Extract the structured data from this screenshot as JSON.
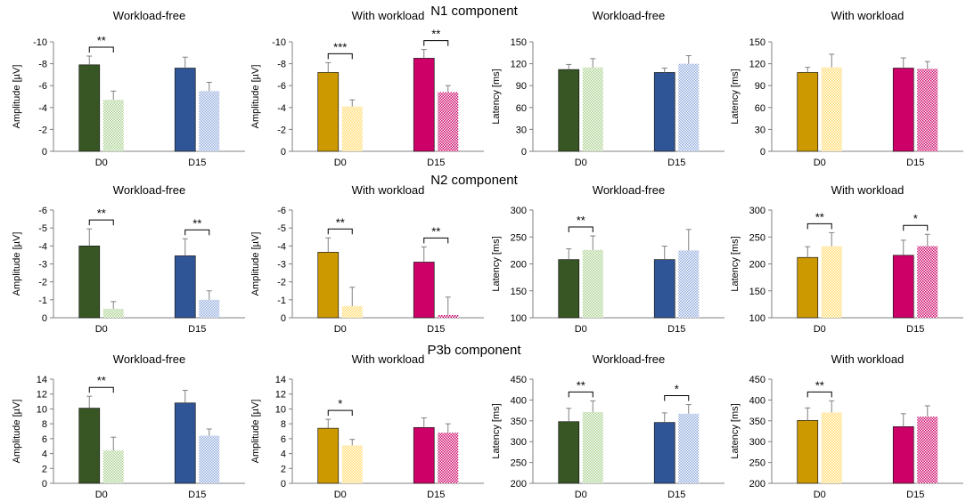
{
  "figure": {
    "sections": [
      {
        "name": "N1",
        "label": "N1 component"
      },
      {
        "name": "N2",
        "label": "N2 component"
      },
      {
        "name": "P3b",
        "label": "P3b component"
      }
    ]
  },
  "colors": {
    "workload_free": {
      "solid": "#375623",
      "pattern": "#a9d08e"
    },
    "with_workload_d0": {
      "solid": "#cc9900",
      "pattern": "#ffd966"
    },
    "workload_free_d15": {
      "solid": "#2f5597",
      "pattern": "#8faadc"
    },
    "with_workload_d15": {
      "solid": "#cc0066",
      "pattern": "#cc0066"
    }
  },
  "chart_data": [
    {
      "id": "n1-amp-wf",
      "type": "bar",
      "title": "Workload-free",
      "ylabel": "Amplitude [µV]",
      "ylim": [
        0,
        -10
      ],
      "yticks": [
        "-10",
        "-8",
        "-6",
        "-4",
        "-2",
        "0"
      ],
      "categories": [
        "D0",
        "D15"
      ],
      "series": [
        {
          "name": "solid",
          "values": [
            -7.9,
            -7.6
          ],
          "errors": [
            0.8,
            1.0
          ]
        },
        {
          "name": "pattern",
          "values": [
            -4.7,
            -5.5
          ],
          "errors": [
            0.8,
            0.8
          ]
        }
      ],
      "colors": [
        "#375623",
        "#2f5597"
      ],
      "significance": [
        {
          "category": "D0",
          "label": "**"
        }
      ]
    },
    {
      "id": "n1-amp-ww",
      "type": "bar",
      "title": "With workload",
      "ylabel": "Amplitude [µV]",
      "ylim": [
        0,
        -10
      ],
      "yticks": [
        "-10",
        "-8",
        "-6",
        "-4",
        "-2",
        "0"
      ],
      "categories": [
        "D0",
        "D15"
      ],
      "series": [
        {
          "name": "solid",
          "values": [
            -7.2,
            -8.5
          ],
          "errors": [
            0.9,
            0.8
          ]
        },
        {
          "name": "pattern",
          "values": [
            -4.1,
            -5.4
          ],
          "errors": [
            0.6,
            0.6
          ]
        }
      ],
      "colors": [
        "#cc9900",
        "#cc0066"
      ],
      "significance": [
        {
          "category": "D0",
          "label": "***"
        },
        {
          "category": "D15",
          "label": "**"
        }
      ]
    },
    {
      "id": "n1-lat-wf",
      "type": "bar",
      "title": "Workload-free",
      "ylabel": "Latency [ms]",
      "ylim": [
        0,
        150
      ],
      "yticks": [
        "0",
        "30",
        "60",
        "90",
        "120",
        "150"
      ],
      "categories": [
        "D0",
        "D15"
      ],
      "series": [
        {
          "name": "solid",
          "values": [
            112,
            108
          ],
          "errors": [
            7,
            6
          ]
        },
        {
          "name": "pattern",
          "values": [
            115,
            120
          ],
          "errors": [
            12,
            11
          ]
        }
      ],
      "colors": [
        "#375623",
        "#2f5597"
      ],
      "significance": []
    },
    {
      "id": "n1-lat-ww",
      "type": "bar",
      "title": "With workload",
      "ylabel": "Latency [ms]",
      "ylim": [
        0,
        150
      ],
      "yticks": [
        "0",
        "30",
        "60",
        "90",
        "120",
        "150"
      ],
      "categories": [
        "D0",
        "D15"
      ],
      "series": [
        {
          "name": "solid",
          "values": [
            108,
            114
          ],
          "errors": [
            7,
            14
          ]
        },
        {
          "name": "pattern",
          "values": [
            115,
            113
          ],
          "errors": [
            18,
            10
          ]
        }
      ],
      "colors": [
        "#cc9900",
        "#cc0066"
      ],
      "significance": []
    },
    {
      "id": "n2-amp-wf",
      "type": "bar",
      "title": "Workload-free",
      "ylabel": "Amplitude [µV]",
      "ylim": [
        0,
        -6
      ],
      "yticks": [
        "-6",
        "-5",
        "-4",
        "-3",
        "-2",
        "-1",
        "0"
      ],
      "categories": [
        "D0",
        "D15"
      ],
      "series": [
        {
          "name": "solid",
          "values": [
            -4.0,
            -3.45
          ],
          "errors": [
            0.95,
            0.95
          ]
        },
        {
          "name": "pattern",
          "values": [
            -0.5,
            -1.0
          ],
          "errors": [
            0.4,
            0.5
          ]
        }
      ],
      "colors": [
        "#375623",
        "#2f5597"
      ],
      "significance": [
        {
          "category": "D0",
          "label": "**"
        },
        {
          "category": "D15",
          "label": "**"
        }
      ]
    },
    {
      "id": "n2-amp-ww",
      "type": "bar",
      "title": "With workload",
      "ylabel": "Amplitude [µV]",
      "ylim": [
        0,
        -6
      ],
      "yticks": [
        "-6",
        "-5",
        "-4",
        "-3",
        "-2",
        "-1",
        "0"
      ],
      "categories": [
        "D0",
        "D15"
      ],
      "series": [
        {
          "name": "solid",
          "values": [
            -3.65,
            -3.1
          ],
          "errors": [
            0.8,
            0.85
          ]
        },
        {
          "name": "pattern",
          "values": [
            -0.65,
            -0.15
          ],
          "errors": [
            1.05,
            1.0
          ]
        }
      ],
      "colors": [
        "#cc9900",
        "#cc0066"
      ],
      "significance": [
        {
          "category": "D0",
          "label": "**"
        },
        {
          "category": "D15",
          "label": "**"
        }
      ]
    },
    {
      "id": "n2-lat-wf",
      "type": "bar",
      "title": "Workload-free",
      "ylabel": "Latency [ms]",
      "ylim": [
        100,
        300
      ],
      "yticks": [
        "100",
        "150",
        "200",
        "250",
        "300"
      ],
      "categories": [
        "D0",
        "D15"
      ],
      "series": [
        {
          "name": "solid",
          "values": [
            208,
            208
          ],
          "errors": [
            20,
            25
          ]
        },
        {
          "name": "pattern",
          "values": [
            226,
            225
          ],
          "errors": [
            26,
            39
          ]
        }
      ],
      "colors": [
        "#375623",
        "#2f5597"
      ],
      "significance": [
        {
          "category": "D0",
          "label": "**"
        }
      ]
    },
    {
      "id": "n2-lat-ww",
      "type": "bar",
      "title": "With workload",
      "ylabel": "Latency [ms]",
      "ylim": [
        100,
        300
      ],
      "yticks": [
        "100",
        "150",
        "200",
        "250",
        "300"
      ],
      "categories": [
        "D0",
        "D15"
      ],
      "series": [
        {
          "name": "solid",
          "values": [
            212,
            216
          ],
          "errors": [
            20,
            28
          ]
        },
        {
          "name": "pattern",
          "values": [
            233,
            233
          ],
          "errors": [
            25,
            22
          ]
        }
      ],
      "colors": [
        "#cc9900",
        "#cc0066"
      ],
      "significance": [
        {
          "category": "D0",
          "label": "**"
        },
        {
          "category": "D15",
          "label": "*"
        }
      ]
    },
    {
      "id": "p3b-amp-wf",
      "type": "bar",
      "title": "Workload-free",
      "ylabel": "Amplitude [µV]",
      "ylim": [
        0,
        14
      ],
      "yticks": [
        "0",
        "2",
        "4",
        "6",
        "8",
        "10",
        "12",
        "14"
      ],
      "categories": [
        "D0",
        "D15"
      ],
      "series": [
        {
          "name": "solid",
          "values": [
            10.1,
            10.8
          ],
          "errors": [
            1.6,
            1.7
          ]
        },
        {
          "name": "pattern",
          "values": [
            4.4,
            6.4
          ],
          "errors": [
            1.8,
            0.9
          ]
        }
      ],
      "colors": [
        "#375623",
        "#2f5597"
      ],
      "significance": [
        {
          "category": "D0",
          "label": "**"
        }
      ]
    },
    {
      "id": "p3b-amp-ww",
      "type": "bar",
      "title": "With workload",
      "ylabel": "Amplitude [µV]",
      "ylim": [
        0,
        14
      ],
      "yticks": [
        "0",
        "2",
        "4",
        "6",
        "8",
        "10",
        "12",
        "14"
      ],
      "categories": [
        "D0",
        "D15"
      ],
      "series": [
        {
          "name": "solid",
          "values": [
            7.4,
            7.5
          ],
          "errors": [
            1.2,
            1.3
          ]
        },
        {
          "name": "pattern",
          "values": [
            5.1,
            6.8
          ],
          "errors": [
            0.8,
            1.2
          ]
        }
      ],
      "colors": [
        "#cc9900",
        "#cc0066"
      ],
      "significance": [
        {
          "category": "D0",
          "label": "*"
        }
      ]
    },
    {
      "id": "p3b-lat-wf",
      "type": "bar",
      "title": "Workload-free",
      "ylabel": "Latency [ms]",
      "ylim": [
        200,
        450
      ],
      "yticks": [
        "200",
        "250",
        "300",
        "350",
        "400",
        "450"
      ],
      "categories": [
        "D0",
        "D15"
      ],
      "series": [
        {
          "name": "solid",
          "values": [
            348,
            346
          ],
          "errors": [
            32,
            23
          ]
        },
        {
          "name": "pattern",
          "values": [
            371,
            367
          ],
          "errors": [
            27,
            22
          ]
        }
      ],
      "colors": [
        "#375623",
        "#2f5597"
      ],
      "significance": [
        {
          "category": "D0",
          "label": "**"
        },
        {
          "category": "D15",
          "label": "*"
        }
      ]
    },
    {
      "id": "p3b-lat-ww",
      "type": "bar",
      "title": "With workload",
      "ylabel": "Latency [ms]",
      "ylim": [
        200,
        450
      ],
      "yticks": [
        "200",
        "250",
        "300",
        "350",
        "400",
        "450"
      ],
      "categories": [
        "D0",
        "D15"
      ],
      "series": [
        {
          "name": "solid",
          "values": [
            351,
            336
          ],
          "errors": [
            30,
            31
          ]
        },
        {
          "name": "pattern",
          "values": [
            370,
            360
          ],
          "errors": [
            28,
            26
          ]
        }
      ],
      "colors": [
        "#cc9900",
        "#cc0066"
      ],
      "significance": [
        {
          "category": "D0",
          "label": "**"
        }
      ]
    }
  ]
}
